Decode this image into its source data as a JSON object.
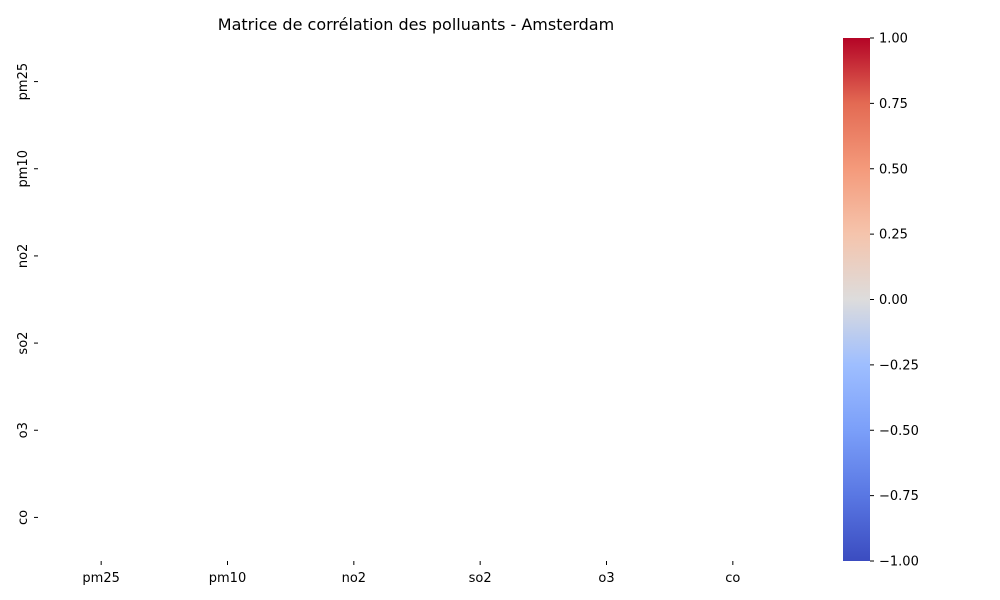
{
  "chart_data": {
    "type": "heatmap",
    "title": "Matrice de corrélation des polluants - Amsterdam",
    "xlabel": "",
    "ylabel": "",
    "x_categories": [
      "pm25",
      "pm10",
      "no2",
      "so2",
      "o3",
      "co"
    ],
    "y_categories": [
      "pm25",
      "pm10",
      "no2",
      "so2",
      "o3",
      "co"
    ],
    "values": [
      [
        null,
        null,
        null,
        null,
        null,
        null
      ],
      [
        null,
        null,
        null,
        null,
        null,
        null
      ],
      [
        null,
        null,
        null,
        null,
        null,
        null
      ],
      [
        null,
        null,
        null,
        null,
        null,
        null
      ],
      [
        null,
        null,
        null,
        null,
        null,
        null
      ],
      [
        null,
        null,
        null,
        null,
        null,
        null
      ]
    ],
    "colorbar": {
      "colormap": "coolwarm",
      "vmin": -1.0,
      "vmax": 1.0,
      "ticks": [
        1.0,
        0.75,
        0.5,
        0.25,
        0.0,
        -0.25,
        -0.5,
        -0.75,
        -1.0
      ],
      "tick_labels": [
        "1.00",
        "0.75",
        "0.50",
        "0.25",
        "0.00",
        "−0.25",
        "−0.50",
        "−0.75",
        "−1.00"
      ],
      "colors": {
        "low": "#3b4cc0",
        "mid": "#dddddd",
        "high": "#b40426"
      }
    }
  }
}
